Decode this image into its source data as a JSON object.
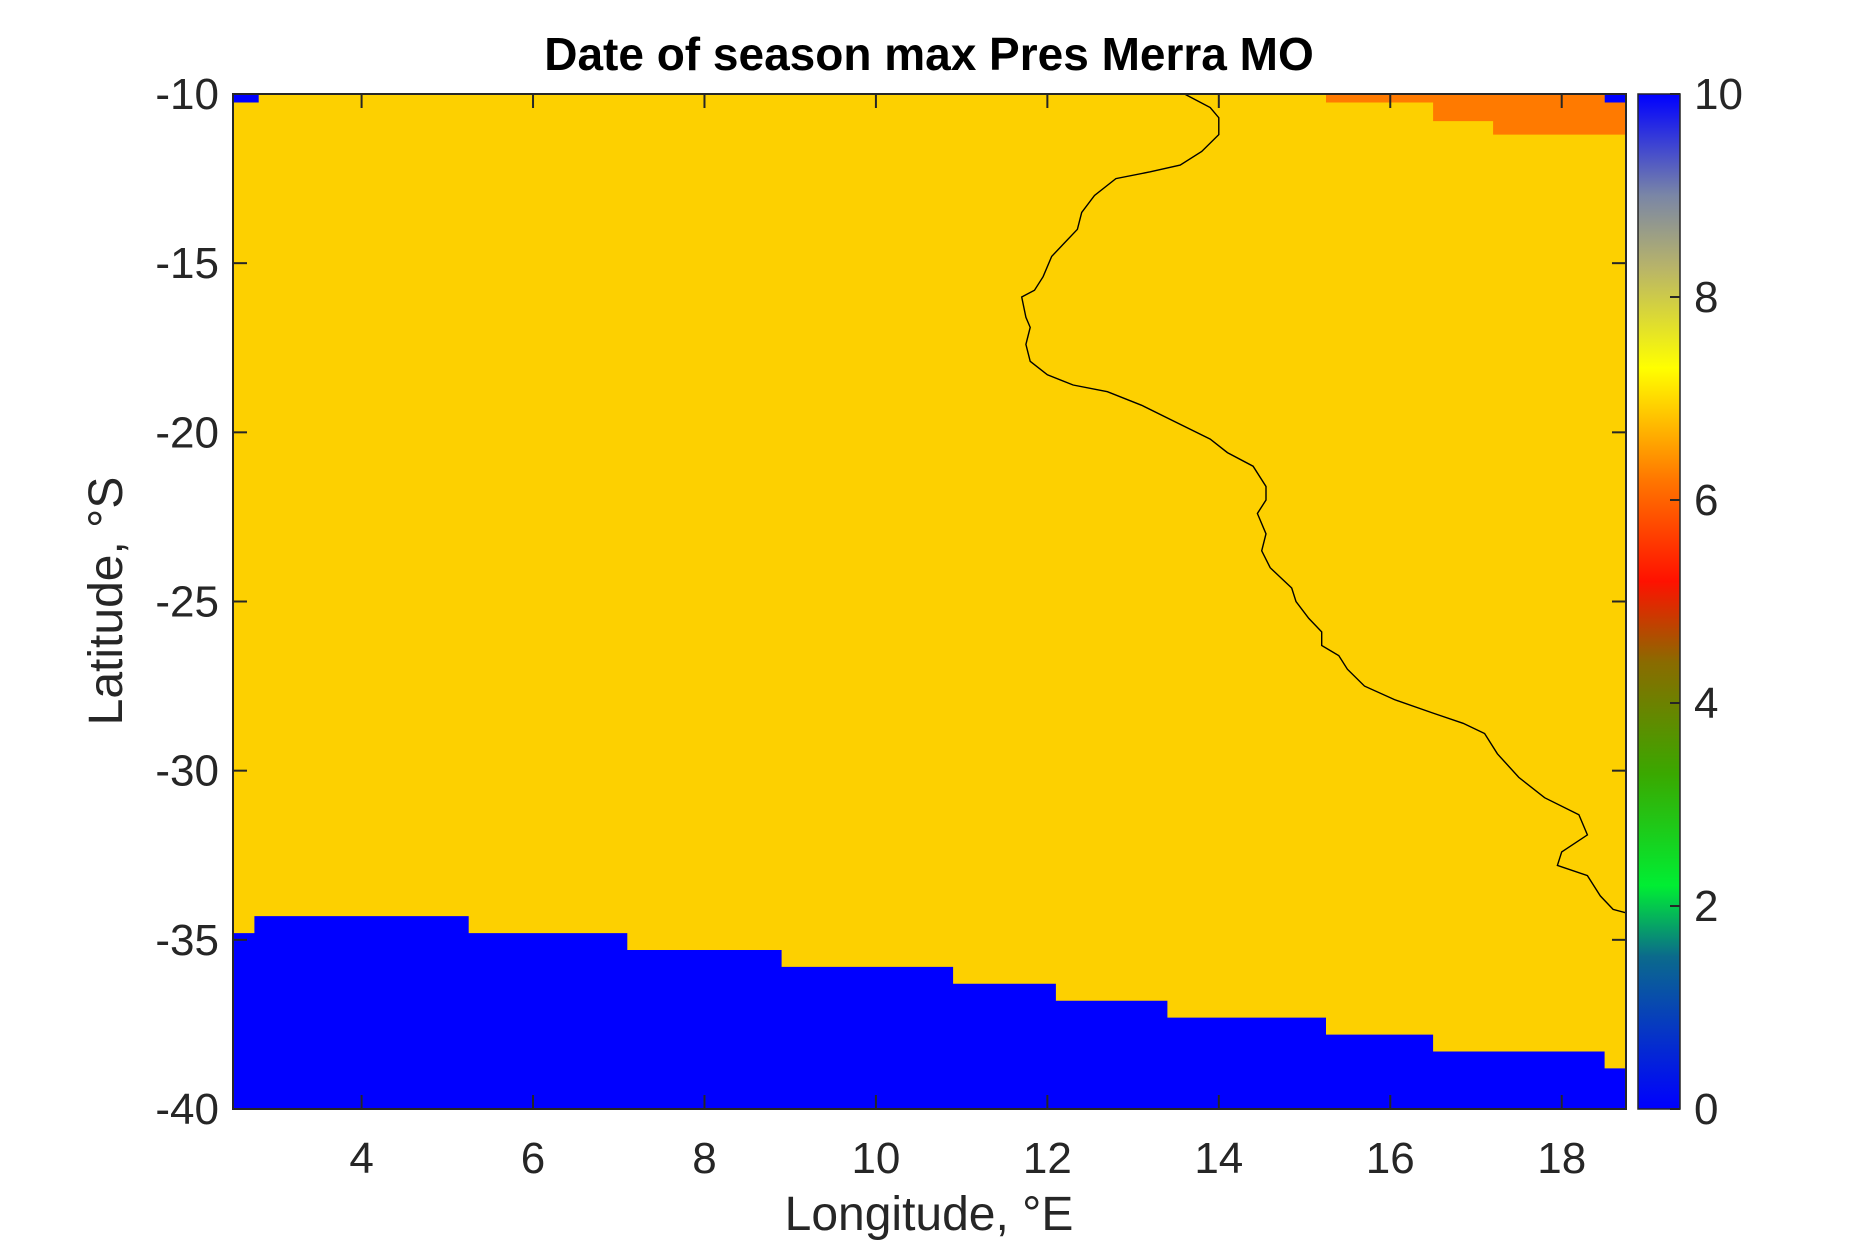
{
  "chart_data": {
    "type": "heatmap",
    "title": "Date of season max Pres Merra MO",
    "xlabel": "Longitude, °E",
    "ylabel": "Latitude, °S",
    "xlim": [
      2.5,
      18.75
    ],
    "ylim": [
      -40,
      -10
    ],
    "xticks": [
      4,
      6,
      8,
      10,
      12,
      14,
      16,
      18
    ],
    "yticks": [
      -10,
      -15,
      -20,
      -25,
      -30,
      -35,
      -40
    ],
    "colorbar": {
      "range": [
        0,
        10
      ],
      "ticks": [
        0,
        2,
        4,
        6,
        8,
        10
      ],
      "stops": [
        {
          "v": 0,
          "c": "#0000ff"
        },
        {
          "v": 1.5,
          "c": "#0b6a8c"
        },
        {
          "v": 2.2,
          "c": "#00ee33"
        },
        {
          "v": 3.3,
          "c": "#3aa800"
        },
        {
          "v": 4.4,
          "c": "#8a6b00"
        },
        {
          "v": 5.2,
          "c": "#ff1100"
        },
        {
          "v": 6.2,
          "c": "#ff7700"
        },
        {
          "v": 7.3,
          "c": "#ffff00"
        },
        {
          "v": 8.3,
          "c": "#b7b36a"
        },
        {
          "v": 9.0,
          "c": "#7a86a6"
        },
        {
          "v": 10,
          "c": "#0000ff"
        }
      ]
    },
    "background_value": 7,
    "background_color": "#fdd000",
    "regions": [
      {
        "name": "southern-band",
        "value": 0,
        "color": "#0000ff",
        "boundary": [
          [
            2.5,
            -34.8
          ],
          [
            2.75,
            -34.8
          ],
          [
            2.75,
            -34.3
          ],
          [
            5.25,
            -34.3
          ],
          [
            5.25,
            -34.8
          ],
          [
            7.1,
            -34.8
          ],
          [
            7.1,
            -35.3
          ],
          [
            8.9,
            -35.3
          ],
          [
            8.9,
            -35.8
          ],
          [
            10.9,
            -35.8
          ],
          [
            10.9,
            -36.3
          ],
          [
            12.1,
            -36.3
          ],
          [
            12.1,
            -36.8
          ],
          [
            13.4,
            -36.8
          ],
          [
            13.4,
            -37.3
          ],
          [
            15.25,
            -37.3
          ],
          [
            15.25,
            -37.8
          ],
          [
            16.5,
            -37.8
          ],
          [
            16.5,
            -38.3
          ],
          [
            18.5,
            -38.3
          ],
          [
            18.5,
            -38.8
          ],
          [
            18.75,
            -38.8
          ],
          [
            18.75,
            -40
          ],
          [
            2.5,
            -40
          ]
        ]
      },
      {
        "name": "corner-top-left",
        "value": 0,
        "color": "#0000ff",
        "boundary": [
          [
            2.5,
            -10
          ],
          [
            2.8,
            -10
          ],
          [
            2.8,
            -10.25
          ],
          [
            2.5,
            -10.25
          ]
        ]
      },
      {
        "name": "corner-top-right",
        "value": 0,
        "color": "#0000ff",
        "boundary": [
          [
            18.5,
            -10
          ],
          [
            18.75,
            -10
          ],
          [
            18.75,
            -10.25
          ],
          [
            18.5,
            -10.25
          ]
        ]
      },
      {
        "name": "orange-northeast",
        "value": 6.3,
        "color": "#ff7a00",
        "boundary": [
          [
            15.25,
            -10
          ],
          [
            18.5,
            -10
          ],
          [
            18.5,
            -10.25
          ],
          [
            18.75,
            -10.25
          ],
          [
            18.75,
            -11.2
          ],
          [
            17.2,
            -11.2
          ],
          [
            17.2,
            -10.8
          ],
          [
            16.5,
            -10.8
          ],
          [
            16.5,
            -10.25
          ],
          [
            15.25,
            -10.25
          ]
        ]
      }
    ],
    "coastline": [
      [
        13.6,
        -10
      ],
      [
        13.9,
        -10.4
      ],
      [
        14.0,
        -10.7
      ],
      [
        14.0,
        -11.2
      ],
      [
        13.8,
        -11.7
      ],
      [
        13.55,
        -12.1
      ],
      [
        13.2,
        -12.3
      ],
      [
        12.8,
        -12.5
      ],
      [
        12.55,
        -13.0
      ],
      [
        12.4,
        -13.5
      ],
      [
        12.35,
        -14.0
      ],
      [
        12.2,
        -14.4
      ],
      [
        12.05,
        -14.8
      ],
      [
        11.95,
        -15.4
      ],
      [
        11.85,
        -15.8
      ],
      [
        11.7,
        -16.0
      ],
      [
        11.75,
        -16.6
      ],
      [
        11.8,
        -16.9
      ],
      [
        11.75,
        -17.4
      ],
      [
        11.8,
        -17.9
      ],
      [
        12.0,
        -18.3
      ],
      [
        12.3,
        -18.6
      ],
      [
        12.7,
        -18.8
      ],
      [
        13.1,
        -19.2
      ],
      [
        13.5,
        -19.7
      ],
      [
        13.9,
        -20.2
      ],
      [
        14.1,
        -20.6
      ],
      [
        14.4,
        -21.0
      ],
      [
        14.55,
        -21.6
      ],
      [
        14.55,
        -22.0
      ],
      [
        14.45,
        -22.4
      ],
      [
        14.55,
        -23.0
      ],
      [
        14.5,
        -23.5
      ],
      [
        14.6,
        -24.0
      ],
      [
        14.85,
        -24.6
      ],
      [
        14.9,
        -25.0
      ],
      [
        15.05,
        -25.5
      ],
      [
        15.2,
        -25.9
      ],
      [
        15.2,
        -26.3
      ],
      [
        15.4,
        -26.6
      ],
      [
        15.5,
        -27.0
      ],
      [
        15.7,
        -27.5
      ],
      [
        16.05,
        -27.9
      ],
      [
        16.5,
        -28.3
      ],
      [
        16.85,
        -28.6
      ],
      [
        17.1,
        -28.9
      ],
      [
        17.25,
        -29.5
      ],
      [
        17.5,
        -30.2
      ],
      [
        17.8,
        -30.8
      ],
      [
        18.2,
        -31.3
      ],
      [
        18.3,
        -31.9
      ],
      [
        18.0,
        -32.4
      ],
      [
        17.95,
        -32.8
      ],
      [
        18.3,
        -33.1
      ],
      [
        18.45,
        -33.7
      ],
      [
        18.6,
        -34.1
      ],
      [
        18.75,
        -34.2
      ]
    ]
  }
}
